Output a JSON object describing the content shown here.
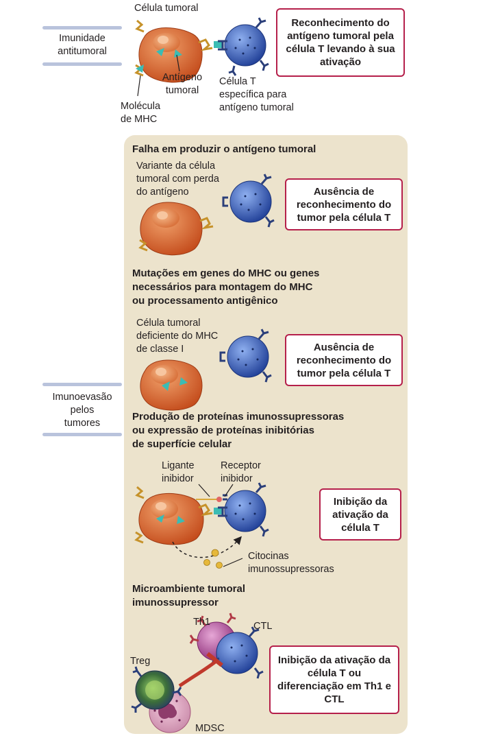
{
  "top": {
    "tab_label": "Imunidade\nantitumoral",
    "label_tumor_cell": "Célula tumoral",
    "label_antigen": "Antígeno\ntumoral",
    "label_mhc": "Molécula\nde MHC",
    "label_tcell": "Célula T\nespecífica para\nantígeno tumoral",
    "outcome": "Reconhecimento do antígeno tumoral pela célula T levando à sua ativação"
  },
  "evasion": {
    "tab_label": "Imunoevasão\npelos\ntumores",
    "sections": [
      {
        "heading": "Falha em produzir o antígeno tumoral",
        "cell_label": "Variante da célula\ntumoral com perda\ndo antígeno",
        "outcome": "Ausência de reconhecimento do tumor pela célula T"
      },
      {
        "heading": "Mutações em genes do MHC ou genes\nnecessários para montagem do MHC\nou processamento antigênico",
        "cell_label": "Célula tumoral\ndeficiente do MHC\nde classe I",
        "outcome": "Ausência de reconhecimento do tumor pela célula T"
      },
      {
        "heading": "Produção de proteínas imunossupressoras\nou expressão de proteínas inibitórias\nde superfície celular",
        "label_ligand": "Ligante\ninibidor",
        "label_receptor": "Receptor\ninibidor",
        "label_cytokines": "Citocinas\nimunossupressoras",
        "outcome": "Inibição da ativação da célula T"
      },
      {
        "heading": "Microambiente tumoral\nimunossupressor",
        "label_th1": "Th1",
        "label_ctl": "CTL",
        "label_treg": "Treg",
        "label_mdsc": "MDSC",
        "outcome": "Inibição da ativação da célula T ou diferenciação em Th1 e CTL"
      }
    ]
  },
  "colors": {
    "outcome_border": "#b51f4a",
    "panel": "#ece3cc",
    "tumor_cell": "#d35a26",
    "t_cell": "#2f56b0",
    "antigen": "#3bbcb4",
    "mhc": "#d9a93a",
    "receptor": "#2b3f7a",
    "th1": "#b8519a",
    "inhibition": "#c0392b"
  }
}
